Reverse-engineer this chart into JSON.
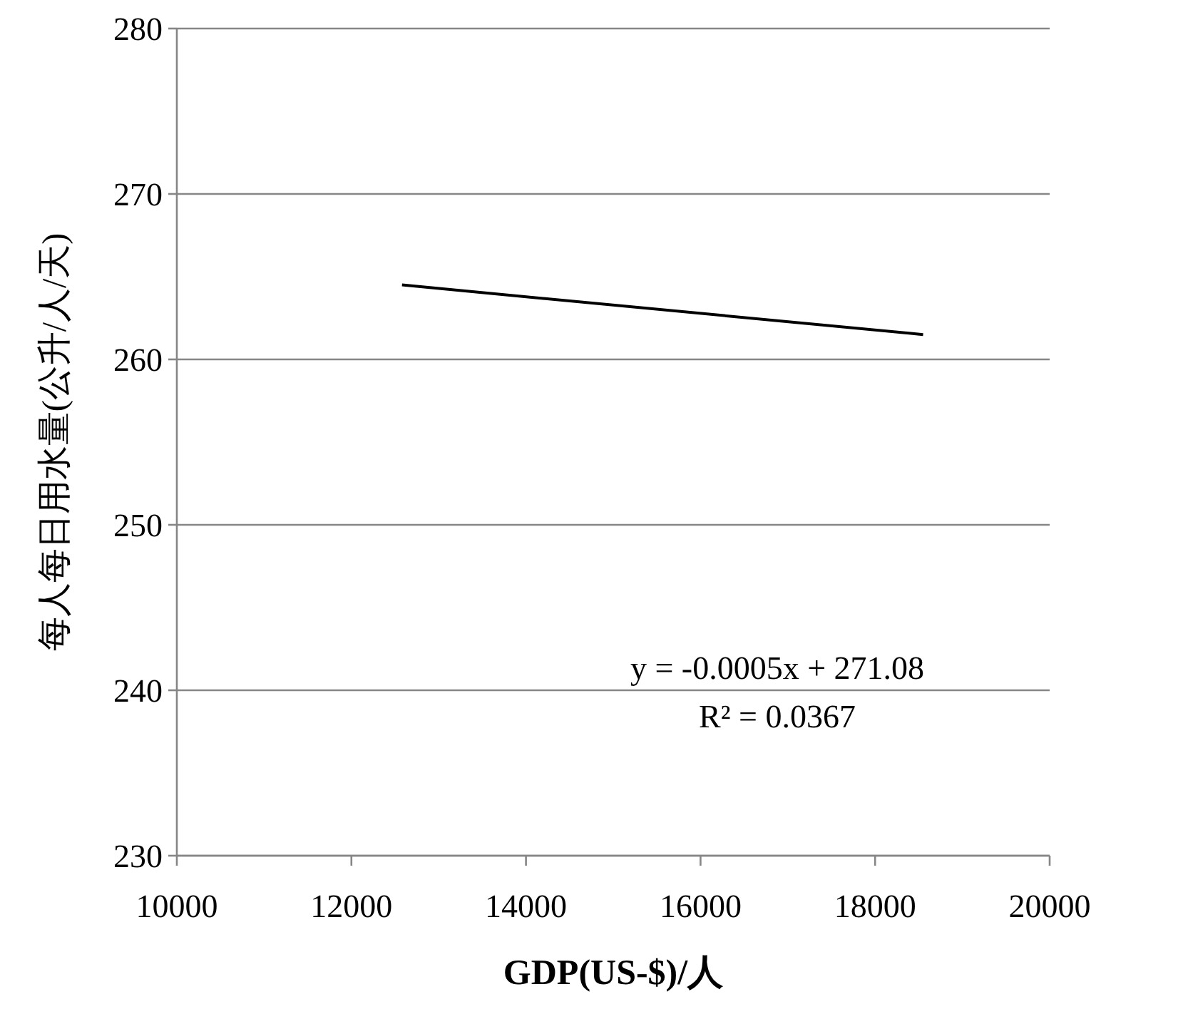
{
  "chart_data": {
    "type": "line",
    "xlabel": "GDP(US-$)/人",
    "ylabel": "每人每日用水量(公升/人/天)",
    "xlim": [
      10000,
      20000
    ],
    "xticks": [
      10000,
      12000,
      14000,
      16000,
      18000,
      20000
    ],
    "ylim": [
      230,
      280
    ],
    "yticks": [
      230,
      240,
      250,
      260,
      270,
      280
    ],
    "grid": "y",
    "series": [
      {
        "color": "#000000",
        "x": [
          12580,
          18550
        ],
        "values": [
          264.5,
          261.5
        ]
      }
    ],
    "annotations": [
      "y = -0.0005x + 271.08",
      "R² = 0.0367"
    ]
  }
}
